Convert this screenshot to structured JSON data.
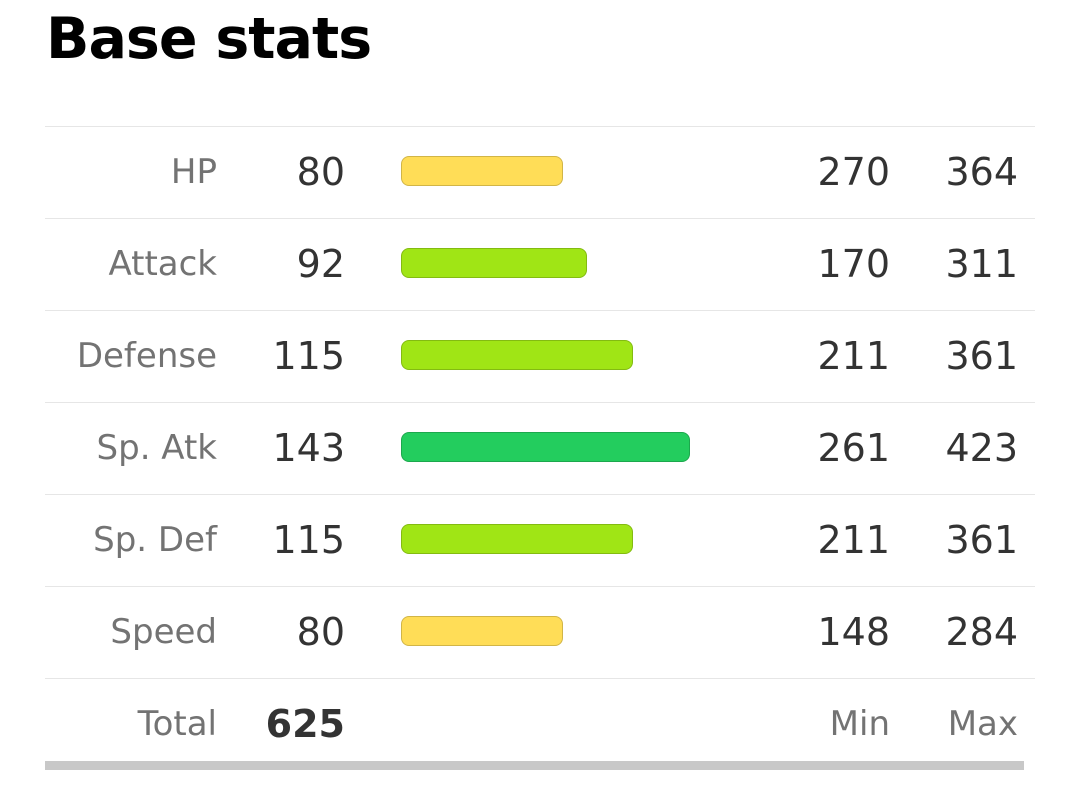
{
  "section": {
    "title": "Base stats"
  },
  "stats": [
    {
      "label": "HP",
      "value": "80",
      "min": "270",
      "max": "364",
      "bar_color": "#ffdd57"
    },
    {
      "label": "Attack",
      "value": "92",
      "min": "170",
      "max": "311",
      "bar_color": "#a0e515"
    },
    {
      "label": "Defense",
      "value": "115",
      "min": "211",
      "max": "361",
      "bar_color": "#a0e515"
    },
    {
      "label": "Sp. Atk",
      "value": "143",
      "min": "261",
      "max": "423",
      "bar_color": "#23cd5e"
    },
    {
      "label": "Sp. Def",
      "value": "115",
      "min": "211",
      "max": "361",
      "bar_color": "#a0e515"
    },
    {
      "label": "Speed",
      "value": "80",
      "min": "148",
      "max": "284",
      "bar_color": "#ffdd57"
    }
  ],
  "total": {
    "label": "Total",
    "value": "625",
    "min_label": "Min",
    "max_label": "Max"
  },
  "bar_scale_max": 255
}
